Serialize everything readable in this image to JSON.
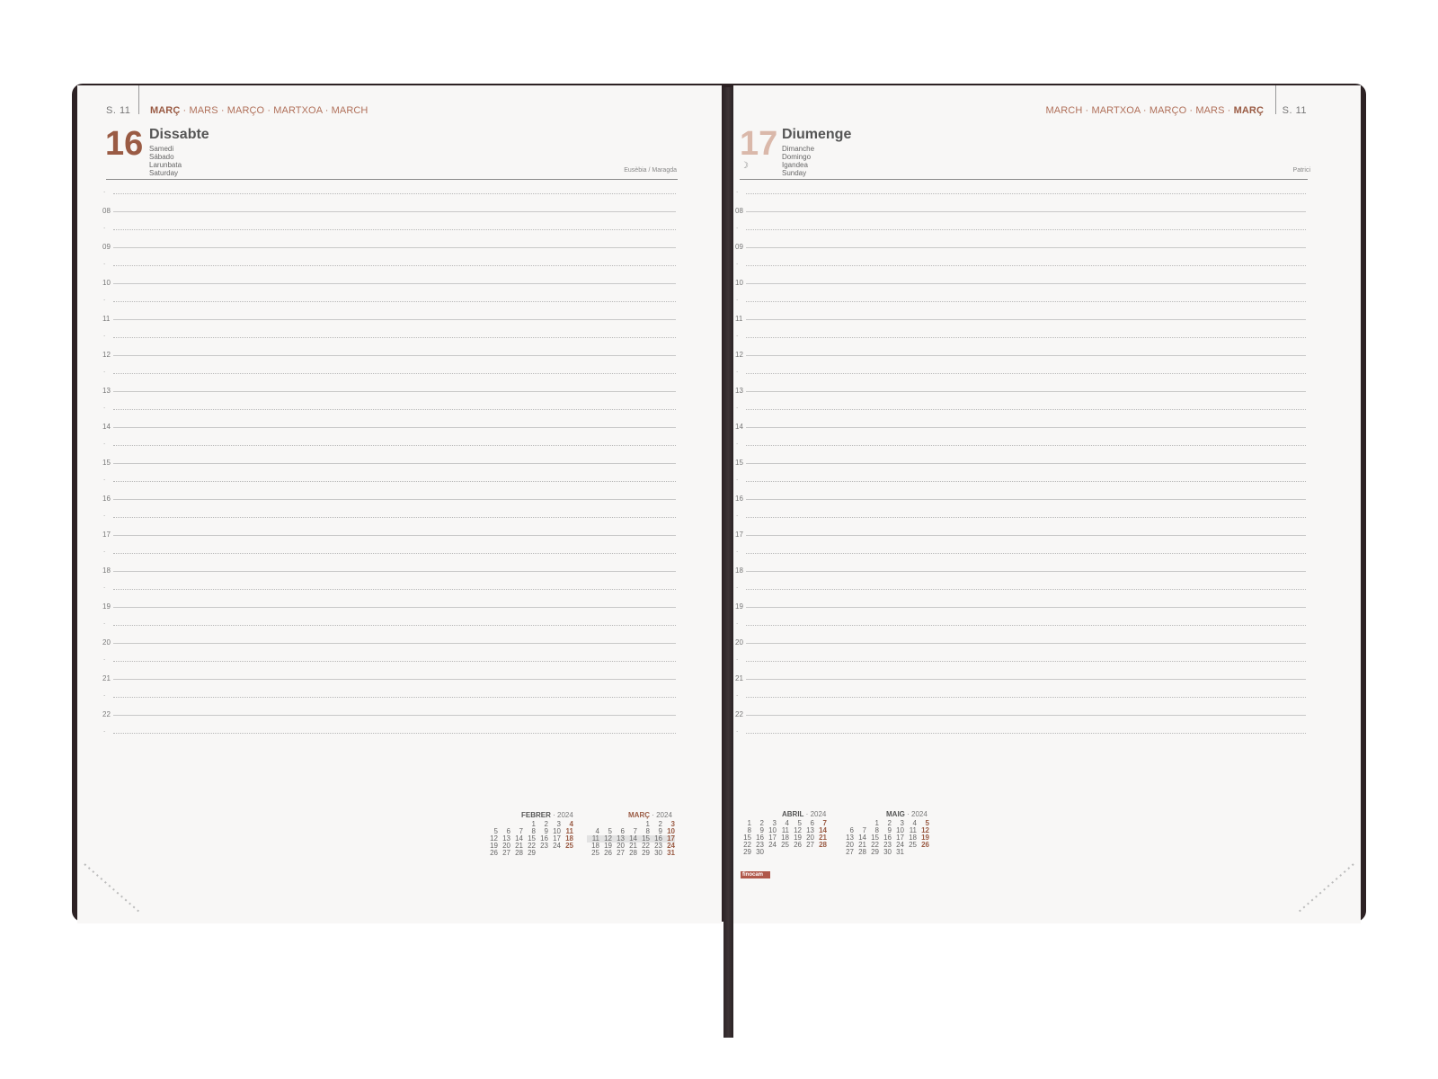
{
  "left_page": {
    "week": "S. 11",
    "month_bold": "MARÇ",
    "month_rest": " · MARS · MARÇO · MARTXOA · MARCH",
    "day_number": "16",
    "day_name": "Dissabte",
    "translations": [
      "Samedi",
      "Sábado",
      "Larunbata",
      "Saturday"
    ],
    "saints": "Eusèbia / Maragda",
    "hours": [
      "08",
      "09",
      "10",
      "11",
      "12",
      "13",
      "14",
      "15",
      "16",
      "17",
      "18",
      "19",
      "20",
      "21",
      "22"
    ]
  },
  "right_page": {
    "week": "S. 11",
    "month_rest": "MARCH · MARTXOA · MARÇO · MARS · ",
    "month_bold": "MARÇ",
    "day_number": "17",
    "day_name": "Diumenge",
    "translations": [
      "Dimanche",
      "Domingo",
      "Igandea",
      "Sunday"
    ],
    "moon": "☽",
    "saints": "Patrici",
    "hours": [
      "08",
      "09",
      "10",
      "11",
      "12",
      "13",
      "14",
      "15",
      "16",
      "17",
      "18",
      "19",
      "20",
      "21",
      "22"
    ],
    "brand": "finocam"
  },
  "calendars": {
    "febrer": {
      "name": "FEBRER",
      "year": " · 2024",
      "rows": [
        [
          "",
          "",
          "",
          "1",
          "2",
          "3",
          "4"
        ],
        [
          "5",
          "6",
          "7",
          "8",
          "9",
          "10",
          "11"
        ],
        [
          "12",
          "13",
          "14",
          "15",
          "16",
          "17",
          "18"
        ],
        [
          "19",
          "20",
          "21",
          "22",
          "23",
          "24",
          "25"
        ],
        [
          "26",
          "27",
          "28",
          "29",
          "",
          "",
          ""
        ]
      ]
    },
    "marc": {
      "name": "MARÇ",
      "year": " · 2024",
      "rows": [
        [
          "",
          "",
          "",
          "",
          "1",
          "2",
          "3"
        ],
        [
          "4",
          "5",
          "6",
          "7",
          "8",
          "9",
          "10"
        ],
        [
          "11",
          "12",
          "13",
          "14",
          "15",
          "16",
          "17"
        ],
        [
          "18",
          "19",
          "20",
          "21",
          "22",
          "23",
          "24"
        ],
        [
          "25",
          "26",
          "27",
          "28",
          "29",
          "30",
          "31"
        ]
      ]
    },
    "abril": {
      "name": "ABRIL",
      "year": " · 2024",
      "rows": [
        [
          "1",
          "2",
          "3",
          "4",
          "5",
          "6",
          "7"
        ],
        [
          "8",
          "9",
          "10",
          "11",
          "12",
          "13",
          "14"
        ],
        [
          "15",
          "16",
          "17",
          "18",
          "19",
          "20",
          "21"
        ],
        [
          "22",
          "23",
          "24",
          "25",
          "26",
          "27",
          "28"
        ],
        [
          "29",
          "30",
          "",
          "",
          "",
          "",
          ""
        ]
      ]
    },
    "maig": {
      "name": "MAIG",
      "year": " · 2024",
      "rows": [
        [
          "",
          "",
          "1",
          "2",
          "3",
          "4",
          "5"
        ],
        [
          "6",
          "7",
          "8",
          "9",
          "10",
          "11",
          "12"
        ],
        [
          "13",
          "14",
          "15",
          "16",
          "17",
          "18",
          "19"
        ],
        [
          "20",
          "21",
          "22",
          "23",
          "24",
          "25",
          "26"
        ],
        [
          "27",
          "28",
          "29",
          "30",
          "31",
          "",
          ""
        ]
      ]
    }
  },
  "colors": {
    "accent": "#9a5b44",
    "accent_light": "#dab8aa",
    "cover": "#2d2224",
    "paper": "#f8f7f6"
  }
}
